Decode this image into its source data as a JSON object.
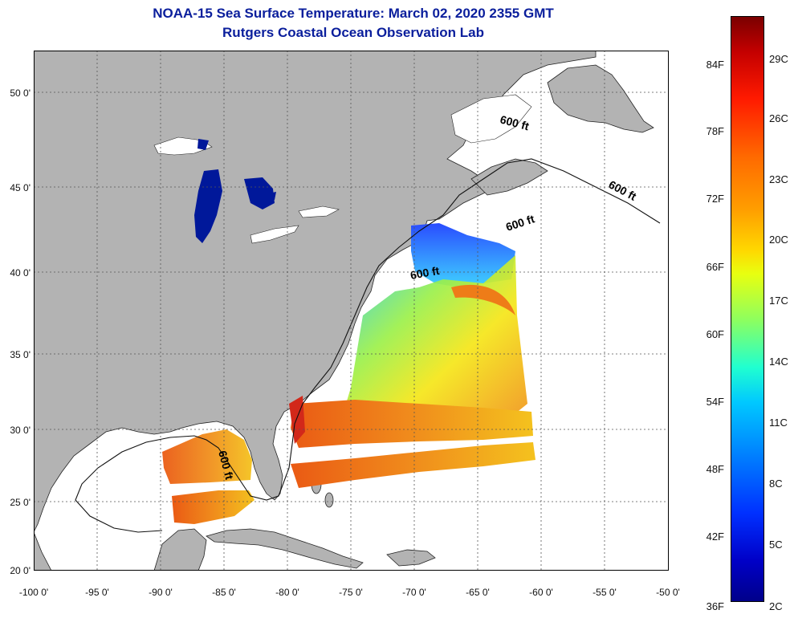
{
  "header": {
    "title_line1": "NOAA-15 Sea Surface Temperature:  March 02, 2020 2355 GMT",
    "title_line2": "Rutgers Coastal Ocean Observation Lab"
  },
  "map": {
    "lat_ticks": [
      "50 0'",
      "45 0'",
      "40 0'",
      "35 0'",
      "30 0'",
      "25 0'",
      "20 0'"
    ],
    "lon_ticks": [
      "-100 0'",
      "-95 0'",
      "-90 0'",
      "-85 0'",
      "-80 0'",
      "-75 0'",
      "-70 0'",
      "-65 0'",
      "-60 0'",
      "-55 0'",
      "-50 0'"
    ],
    "contour_labels": [
      "600 ft",
      "600 ft",
      "600 ft",
      "600 ft",
      "600 ft"
    ],
    "colors": {
      "land": "#b3b3b3",
      "water": "#ffffff",
      "lakes": "#00189a"
    }
  },
  "colorbar": {
    "fahrenheit_labels": [
      "84F",
      "78F",
      "72F",
      "66F",
      "60F",
      "54F",
      "48F",
      "42F",
      "36F"
    ],
    "celsius_labels": [
      "29C",
      "26C",
      "23C",
      "20C",
      "17C",
      "14C",
      "11C",
      "8C",
      "5C",
      "2C"
    ],
    "min_c": 2,
    "max_c": 31
  }
}
